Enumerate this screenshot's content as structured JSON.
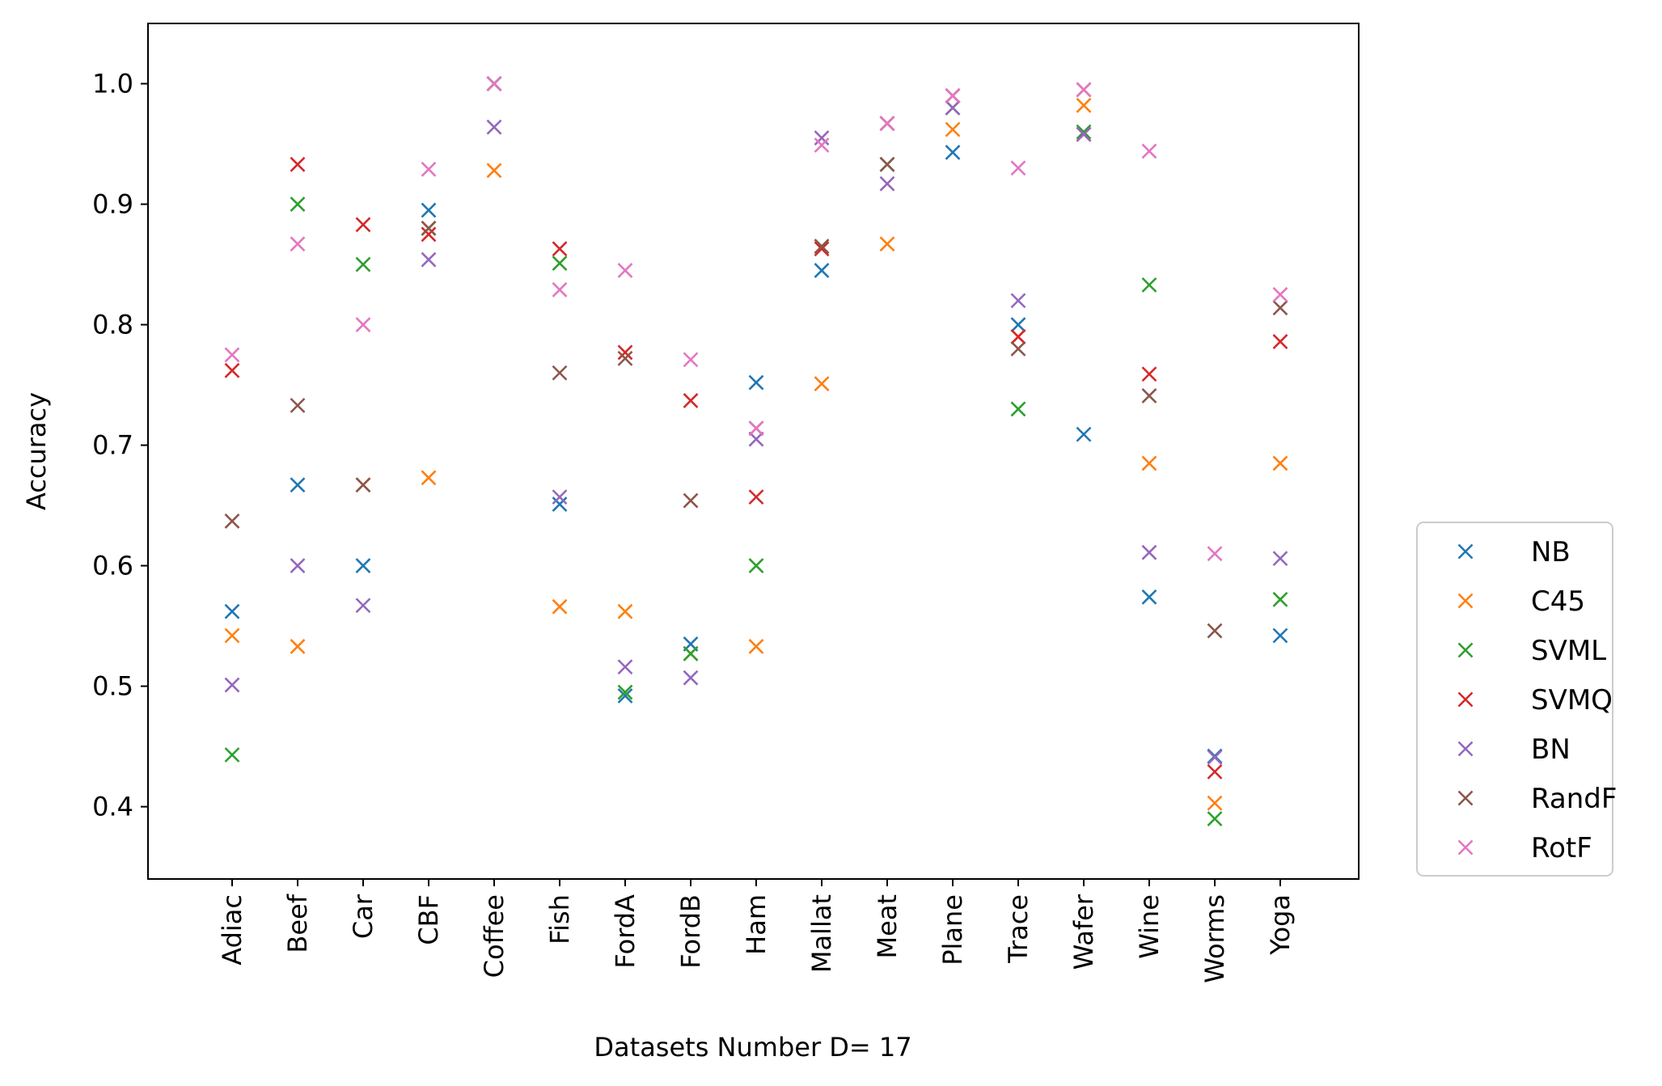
{
  "chart_data": {
    "type": "scatter",
    "marker": "x",
    "title": "",
    "xlabel": "Datasets Number D= 17",
    "ylabel": "Accuracy",
    "ylim": [
      0.34,
      1.05
    ],
    "yticks": [
      0.4,
      0.5,
      0.6,
      0.7,
      0.8,
      0.9,
      1.0
    ],
    "ytick_labels": [
      "0.4",
      "0.5",
      "0.6",
      "0.7",
      "0.8",
      "0.9",
      "1.0"
    ],
    "grid": false,
    "legend_position": "outside-right",
    "categories": [
      "Adiac",
      "Beef",
      "Car",
      "CBF",
      "Coffee",
      "Fish",
      "FordA",
      "FordB",
      "Ham",
      "Mallat",
      "Meat",
      "Plane",
      "Trace",
      "Wafer",
      "Wine",
      "Worms",
      "Yoga"
    ],
    "series": [
      {
        "name": "NB",
        "color": "#1f77b4",
        "values": [
          0.562,
          0.667,
          0.6,
          0.895,
          1.0,
          0.651,
          0.492,
          0.535,
          0.752,
          0.845,
          0.967,
          0.943,
          0.8,
          0.709,
          0.574,
          0.442,
          0.542
        ]
      },
      {
        "name": "C45",
        "color": "#ff7f0e",
        "values": [
          0.542,
          0.533,
          0.667,
          0.673,
          0.928,
          0.566,
          0.562,
          0.527,
          0.533,
          0.751,
          0.867,
          0.962,
          0.79,
          0.982,
          0.685,
          0.403,
          0.685
        ]
      },
      {
        "name": "SVML",
        "color": "#2ca02c",
        "values": [
          0.443,
          0.9,
          0.85,
          0.88,
          1.0,
          0.851,
          0.495,
          0.527,
          0.6,
          0.865,
          0.933,
          0.98,
          0.73,
          0.96,
          0.833,
          0.39,
          0.572
        ]
      },
      {
        "name": "SVMQ",
        "color": "#d62728",
        "values": [
          0.762,
          0.933,
          0.883,
          0.875,
          1.0,
          0.863,
          0.777,
          0.737,
          0.657,
          0.863,
          0.967,
          0.99,
          0.79,
          0.958,
          0.759,
          0.429,
          0.786
        ]
      },
      {
        "name": "BN",
        "color": "#9467bd",
        "values": [
          0.501,
          0.6,
          0.567,
          0.854,
          0.964,
          0.657,
          0.516,
          0.507,
          0.705,
          0.955,
          0.917,
          0.98,
          0.82,
          0.958,
          0.611,
          0.441,
          0.606
        ]
      },
      {
        "name": "RandF",
        "color": "#8c564b",
        "values": [
          0.637,
          0.733,
          0.667,
          0.88,
          1.0,
          0.76,
          0.772,
          0.654,
          0.714,
          0.865,
          0.933,
          0.99,
          0.78,
          0.995,
          0.741,
          0.546,
          0.814
        ]
      },
      {
        "name": "RotF",
        "color": "#e377c2",
        "values": [
          0.775,
          0.867,
          0.8,
          0.929,
          1.0,
          0.829,
          0.845,
          0.771,
          0.714,
          0.949,
          0.967,
          0.99,
          0.93,
          0.995,
          0.944,
          0.61,
          0.825
        ]
      }
    ]
  }
}
